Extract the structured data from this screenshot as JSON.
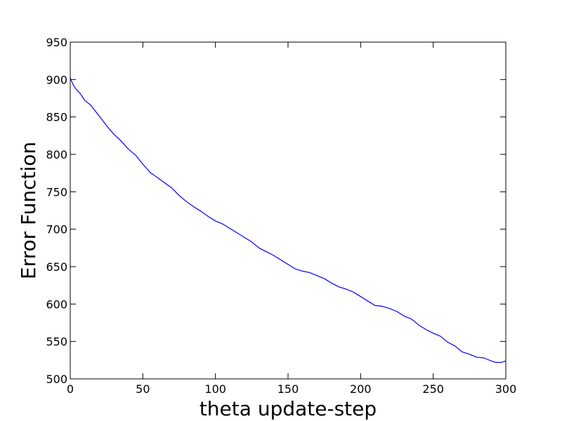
{
  "chart_data": {
    "type": "line",
    "title": "",
    "xlabel": "theta update-step",
    "ylabel": "Error Function",
    "xlim": [
      0,
      300
    ],
    "ylim": [
      500,
      950
    ],
    "x_ticks": [
      0,
      50,
      100,
      150,
      200,
      250,
      300
    ],
    "y_ticks": [
      500,
      550,
      600,
      650,
      700,
      750,
      800,
      850,
      900,
      950
    ],
    "grid": false,
    "line_color": "#0000ff",
    "series": [
      {
        "x": [
          0,
          2,
          4,
          7,
          10,
          14,
          18,
          22,
          26,
          30,
          35,
          40,
          45,
          50,
          55,
          60,
          65,
          70,
          75,
          80,
          85,
          90,
          95,
          100,
          105,
          110,
          115,
          120,
          125,
          130,
          135,
          140,
          145,
          150,
          155,
          160,
          165,
          170,
          175,
          180,
          185,
          190,
          195,
          200,
          205,
          210,
          215,
          220,
          225,
          230,
          235,
          240,
          245,
          250,
          255,
          260,
          265,
          270,
          275,
          280,
          285,
          290,
          293,
          295,
          297,
          300
        ],
        "y": [
          902,
          893,
          887,
          881,
          872,
          866,
          856,
          846,
          836,
          827,
          818,
          807,
          799,
          787,
          776,
          769,
          762,
          755,
          745,
          737,
          730,
          724,
          717,
          711,
          707,
          701,
          695,
          689,
          683,
          675,
          670,
          665,
          659,
          653,
          647,
          644,
          642,
          638,
          634,
          628,
          623,
          620,
          616,
          610,
          604,
          598,
          597,
          594,
          590,
          584,
          580,
          572,
          566,
          561,
          557,
          549,
          544,
          536,
          533,
          529,
          528,
          524,
          522,
          522,
          522,
          524
        ]
      }
    ]
  }
}
